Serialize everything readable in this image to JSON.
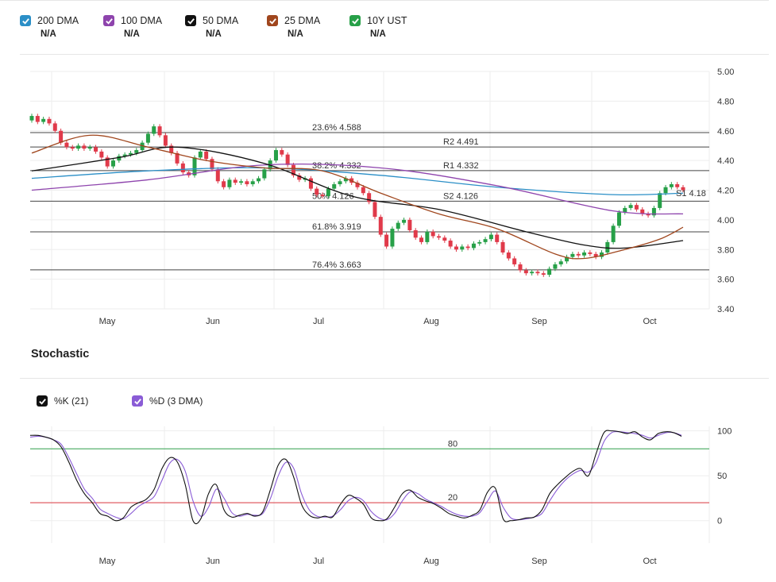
{
  "legend": [
    {
      "label": "200 DMA",
      "value": "N/A",
      "color": "#2b8fc7"
    },
    {
      "label": "100 DMA",
      "value": "N/A",
      "color": "#8e44ad"
    },
    {
      "label": "50 DMA",
      "value": "N/A",
      "color": "#111111"
    },
    {
      "label": "25 DMA",
      "value": "N/A",
      "color": "#a0461d"
    },
    {
      "label": "10Y UST",
      "value": "N/A",
      "color": "#27a048"
    }
  ],
  "stochastic": {
    "title": "Stochastic",
    "legend": [
      {
        "label": "%K (21)",
        "color": "#111111"
      },
      {
        "label": "%D (3 DMA)",
        "color": "#8a5cd6"
      }
    ]
  },
  "chart_data": [
    {
      "type": "candlestick",
      "ylim": [
        3.4,
        5.0
      ],
      "y_ticks": [
        "5.00",
        "4.80",
        "4.60",
        "4.40",
        "4.20",
        "4.00",
        "3.80",
        "3.60",
        "3.40"
      ],
      "x_ticks": [
        "May",
        "Jun",
        "Jul",
        "Aug",
        "Sep",
        "Oct"
      ],
      "levels": [
        {
          "label": "23.6% 4.588",
          "value": 4.588
        },
        {
          "label": "R2 4.491",
          "value": 4.491
        },
        {
          "label": "38.2% 4.332",
          "value": 4.332
        },
        {
          "label": "R1 4.332",
          "value": 4.332
        },
        {
          "label": "50% 4.126",
          "value": 4.126
        },
        {
          "label": "S2 4.126",
          "value": 4.126
        },
        {
          "label": "61.8% 3.919",
          "value": 3.919
        },
        {
          "label": "76.4% 3.663",
          "value": 3.663
        }
      ],
      "marker": {
        "label": "S1 4.18",
        "value": 4.18
      },
      "closes": [
        4.7,
        4.66,
        4.68,
        4.65,
        4.6,
        4.52,
        4.49,
        4.48,
        4.5,
        4.48,
        4.49,
        4.46,
        4.42,
        4.36,
        4.4,
        4.43,
        4.44,
        4.45,
        4.47,
        4.52,
        4.58,
        4.63,
        4.57,
        4.5,
        4.45,
        4.38,
        4.32,
        4.3,
        4.42,
        4.46,
        4.41,
        4.34,
        4.26,
        4.22,
        4.27,
        4.25,
        4.26,
        4.24,
        4.26,
        4.28,
        4.34,
        4.4,
        4.47,
        4.44,
        4.37,
        4.3,
        4.27,
        4.28,
        4.21,
        4.17,
        4.16,
        4.21,
        4.24,
        4.26,
        4.28,
        4.25,
        4.22,
        4.18,
        4.12,
        4.02,
        3.9,
        3.82,
        3.94,
        3.98,
        4.0,
        3.93,
        3.88,
        3.85,
        3.92,
        3.89,
        3.88,
        3.86,
        3.82,
        3.8,
        3.82,
        3.81,
        3.84,
        3.85,
        3.87,
        3.9,
        3.85,
        3.78,
        3.74,
        3.7,
        3.66,
        3.64,
        3.65,
        3.64,
        3.63,
        3.67,
        3.7,
        3.72,
        3.75,
        3.77,
        3.76,
        3.78,
        3.77,
        3.75,
        3.78,
        3.85,
        3.96,
        4.05,
        4.08,
        4.1,
        4.07,
        4.04,
        4.03,
        4.08,
        4.18,
        4.22,
        4.24,
        4.22,
        4.2
      ],
      "series": [
        {
          "name": "200 DMA",
          "color": "#2b8fc7",
          "x": [
            0,
            20,
            40,
            60,
            80,
            100,
            112
          ],
          "values": [
            4.28,
            4.33,
            4.35,
            4.3,
            4.22,
            4.17,
            4.18
          ]
        },
        {
          "name": "100 DMA",
          "color": "#8e44ad",
          "x": [
            0,
            20,
            40,
            60,
            80,
            100,
            112
          ],
          "values": [
            4.2,
            4.27,
            4.37,
            4.35,
            4.23,
            4.06,
            4.04
          ]
        },
        {
          "name": "50 DMA",
          "color": "#111111",
          "x": [
            0,
            15,
            25,
            40,
            55,
            70,
            85,
            95,
            102,
            112
          ],
          "values": [
            4.33,
            4.42,
            4.49,
            4.38,
            4.16,
            4.07,
            3.92,
            3.83,
            3.81,
            3.86
          ]
        },
        {
          "name": "25 DMA",
          "color": "#a0461d",
          "x": [
            0,
            10,
            20,
            30,
            40,
            50,
            60,
            70,
            80,
            90,
            95,
            102,
            108,
            112
          ],
          "values": [
            4.45,
            4.57,
            4.49,
            4.4,
            4.35,
            4.33,
            4.18,
            4.04,
            3.94,
            3.77,
            3.74,
            3.8,
            3.87,
            3.95
          ]
        }
      ]
    },
    {
      "type": "line",
      "ylim": [
        -25,
        105
      ],
      "y_ticks": [
        "100",
        "50",
        "0"
      ],
      "x_ticks": [
        "May",
        "Jun",
        "Jul",
        "Aug",
        "Sep",
        "Oct"
      ],
      "levels": [
        {
          "label": "80",
          "value": 80
        },
        {
          "label": "20",
          "value": 20
        }
      ],
      "series": [
        {
          "name": "%K (21)",
          "color": "#111111",
          "values": [
            95,
            95,
            93,
            90,
            82,
            65,
            45,
            30,
            20,
            8,
            5,
            0,
            3,
            15,
            20,
            24,
            35,
            58,
            70,
            65,
            40,
            0,
            2,
            30,
            40,
            12,
            4,
            6,
            8,
            5,
            10,
            35,
            62,
            68,
            48,
            18,
            6,
            3,
            5,
            4,
            18,
            28,
            25,
            18,
            3,
            0,
            2,
            15,
            30,
            34,
            26,
            22,
            19,
            14,
            8,
            5,
            3,
            6,
            12,
            32,
            36,
            2,
            0,
            1,
            3,
            4,
            12,
            30,
            40,
            48,
            55,
            58,
            50,
            75,
            98,
            100,
            99,
            97,
            99,
            93,
            90,
            97,
            99,
            98,
            94
          ]
        },
        {
          "name": "%D (3 DMA)",
          "color": "#8a5cd6",
          "values": [
            93,
            94,
            93,
            90,
            85,
            70,
            52,
            35,
            25,
            13,
            8,
            4,
            2,
            8,
            16,
            21,
            27,
            45,
            64,
            68,
            55,
            22,
            5,
            15,
            35,
            25,
            9,
            5,
            7,
            6,
            8,
            25,
            50,
            65,
            58,
            30,
            12,
            5,
            4,
            5,
            12,
            22,
            26,
            22,
            10,
            3,
            1,
            8,
            22,
            32,
            30,
            24,
            20,
            16,
            11,
            7,
            5,
            5,
            9,
            22,
            33,
            15,
            3,
            1,
            2,
            4,
            8,
            22,
            35,
            45,
            52,
            56,
            54,
            65,
            88,
            98,
            99,
            98,
            97,
            95,
            92,
            95,
            98,
            98,
            95
          ]
        }
      ]
    }
  ]
}
